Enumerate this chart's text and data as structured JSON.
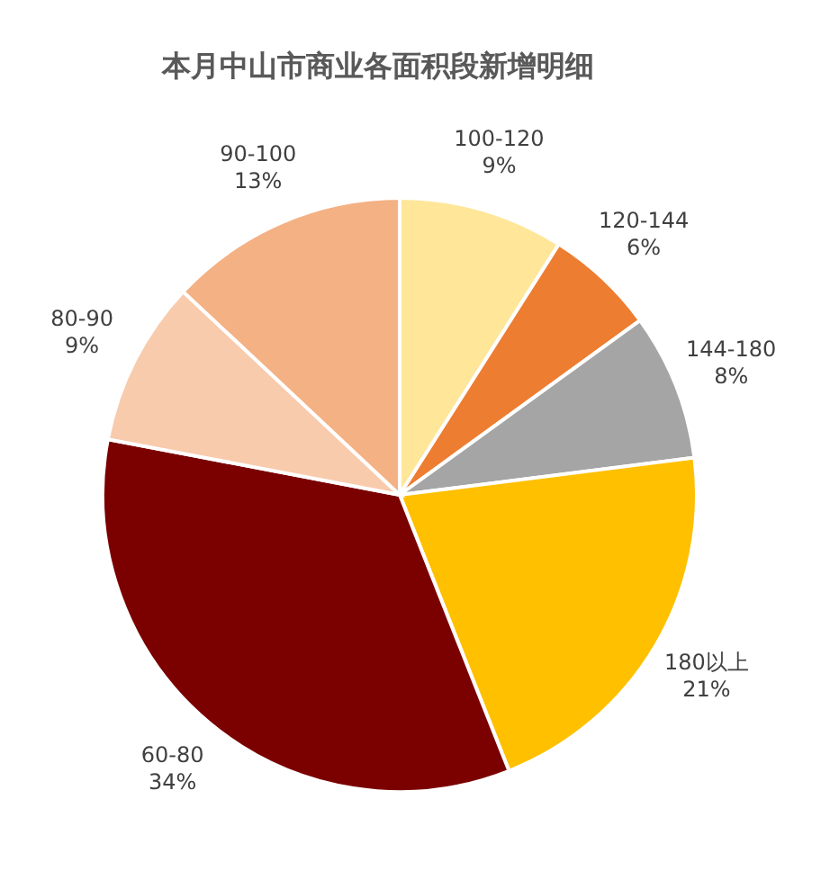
{
  "chart_data": {
    "type": "pie",
    "title": "本月中山市商业各面积段新增明细",
    "categories": [
      "100-120",
      "120-144",
      "144-180",
      "180以上",
      "60-80",
      "80-90",
      "90-100"
    ],
    "values": [
      9,
      6,
      8,
      21,
      34,
      9,
      13
    ],
    "colors": [
      "#ffe699",
      "#ed7d31",
      "#a5a5a5",
      "#ffc000",
      "#7b0000",
      "#f8cbad",
      "#f4b183"
    ],
    "value_labels": [
      "9%",
      "6%",
      "8%",
      "21%",
      "34%",
      "9%",
      "13%"
    ]
  }
}
